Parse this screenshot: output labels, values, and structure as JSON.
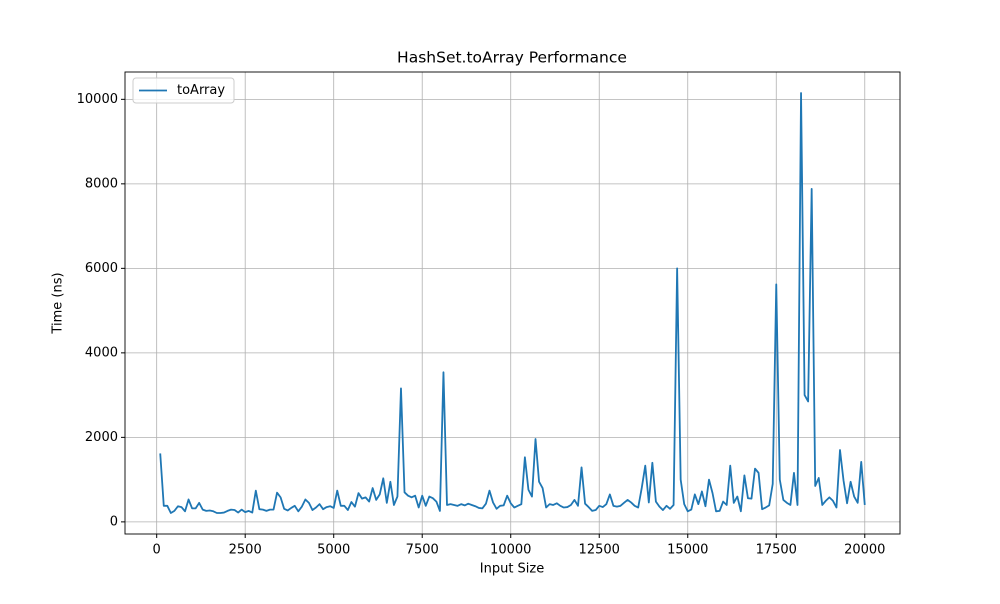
{
  "chart_data": {
    "type": "line",
    "title": "HashSet.toArray Performance",
    "x_label": "Input Size",
    "y_label": "Time (ns)",
    "x": [
      100,
      200,
      300,
      400,
      500,
      600,
      700,
      800,
      900,
      1000,
      1100,
      1200,
      1300,
      1400,
      1500,
      1600,
      1700,
      1800,
      1900,
      2000,
      2100,
      2200,
      2300,
      2400,
      2500,
      2600,
      2700,
      2800,
      2900,
      3000,
      3100,
      3200,
      3300,
      3400,
      3500,
      3600,
      3700,
      3800,
      3900,
      4000,
      4100,
      4200,
      4300,
      4400,
      4500,
      4600,
      4700,
      4800,
      4900,
      5000,
      5100,
      5200,
      5300,
      5400,
      5500,
      5600,
      5700,
      5800,
      5900,
      6000,
      6100,
      6200,
      6300,
      6400,
      6500,
      6600,
      6700,
      6800,
      6900,
      7000,
      7100,
      7200,
      7300,
      7400,
      7500,
      7600,
      7700,
      7800,
      7900,
      8000,
      8100,
      8200,
      8300,
      8400,
      8500,
      8600,
      8700,
      8800,
      8900,
      9000,
      9100,
      9200,
      9300,
      9400,
      9500,
      9600,
      9700,
      9800,
      9900,
      10000,
      10100,
      10200,
      10300,
      10400,
      10500,
      10600,
      10700,
      10800,
      10900,
      11000,
      11100,
      11200,
      11300,
      11400,
      11500,
      11600,
      11700,
      11800,
      11900,
      12000,
      12100,
      12200,
      12300,
      12400,
      12500,
      12600,
      12700,
      12800,
      12900,
      13000,
      13100,
      13200,
      13300,
      13400,
      13500,
      13600,
      13700,
      13800,
      13900,
      14000,
      14100,
      14200,
      14300,
      14400,
      14500,
      14600,
      14700,
      14800,
      14900,
      15000,
      15100,
      15200,
      15300,
      15400,
      15500,
      15600,
      15700,
      15800,
      15900,
      16000,
      16100,
      16200,
      16300,
      16400,
      16500,
      16600,
      16700,
      16800,
      16900,
      17000,
      17100,
      17200,
      17300,
      17400,
      17500,
      17600,
      17700,
      17800,
      17900,
      18000,
      18100,
      18200,
      18300,
      18400,
      18500,
      18600,
      18700,
      18800,
      18900,
      19000,
      19100,
      19200,
      19300,
      19400,
      19500,
      19600,
      19700,
      19800,
      19900,
      20000
    ],
    "series": [
      {
        "name": "toArray",
        "color": "#1f77b4",
        "values": [
          1620,
          380,
          380,
          210,
          260,
          370,
          350,
          250,
          530,
          320,
          320,
          450,
          290,
          260,
          270,
          250,
          210,
          210,
          220,
          260,
          290,
          280,
          220,
          290,
          230,
          260,
          220,
          740,
          300,
          290,
          260,
          290,
          290,
          690,
          580,
          310,
          270,
          330,
          380,
          250,
          360,
          530,
          450,
          280,
          340,
          420,
          300,
          350,
          370,
          330,
          740,
          380,
          380,
          280,
          470,
          360,
          680,
          550,
          580,
          480,
          800,
          520,
          650,
          1030,
          450,
          950,
          400,
          600,
          3160,
          700,
          620,
          580,
          620,
          340,
          620,
          380,
          600,
          560,
          480,
          260,
          3540,
          400,
          420,
          400,
          380,
          420,
          390,
          430,
          400,
          370,
          330,
          320,
          430,
          740,
          460,
          310,
          380,
          390,
          620,
          440,
          340,
          380,
          420,
          1530,
          760,
          600,
          1960,
          950,
          800,
          340,
          420,
          400,
          440,
          380,
          340,
          350,
          400,
          520,
          380,
          1290,
          430,
          350,
          260,
          280,
          380,
          350,
          420,
          650,
          380,
          360,
          380,
          450,
          520,
          460,
          380,
          340,
          800,
          1330,
          460,
          1400,
          480,
          360,
          280,
          380,
          310,
          400,
          6000,
          1000,
          420,
          250,
          290,
          650,
          420,
          720,
          370,
          1000,
          680,
          250,
          260,
          480,
          400,
          1330,
          450,
          600,
          250,
          1100,
          560,
          550,
          1260,
          1160,
          300,
          340,
          390,
          900,
          5620,
          1000,
          520,
          450,
          400,
          1160,
          400,
          10150,
          3000,
          2850,
          7880,
          850,
          1040,
          400,
          500,
          580,
          500,
          340,
          1700,
          980,
          440,
          950,
          600,
          450,
          1420,
          400
        ]
      }
    ],
    "xlim": [
      -895,
      20995
    ],
    "ylim": [
      -287,
      10647
    ],
    "xticks": [
      0,
      2500,
      5000,
      7500,
      10000,
      12500,
      15000,
      17500,
      20000
    ],
    "yticks": [
      0,
      2000,
      4000,
      6000,
      8000,
      10000
    ],
    "grid": true,
    "legend": "upper-left"
  }
}
